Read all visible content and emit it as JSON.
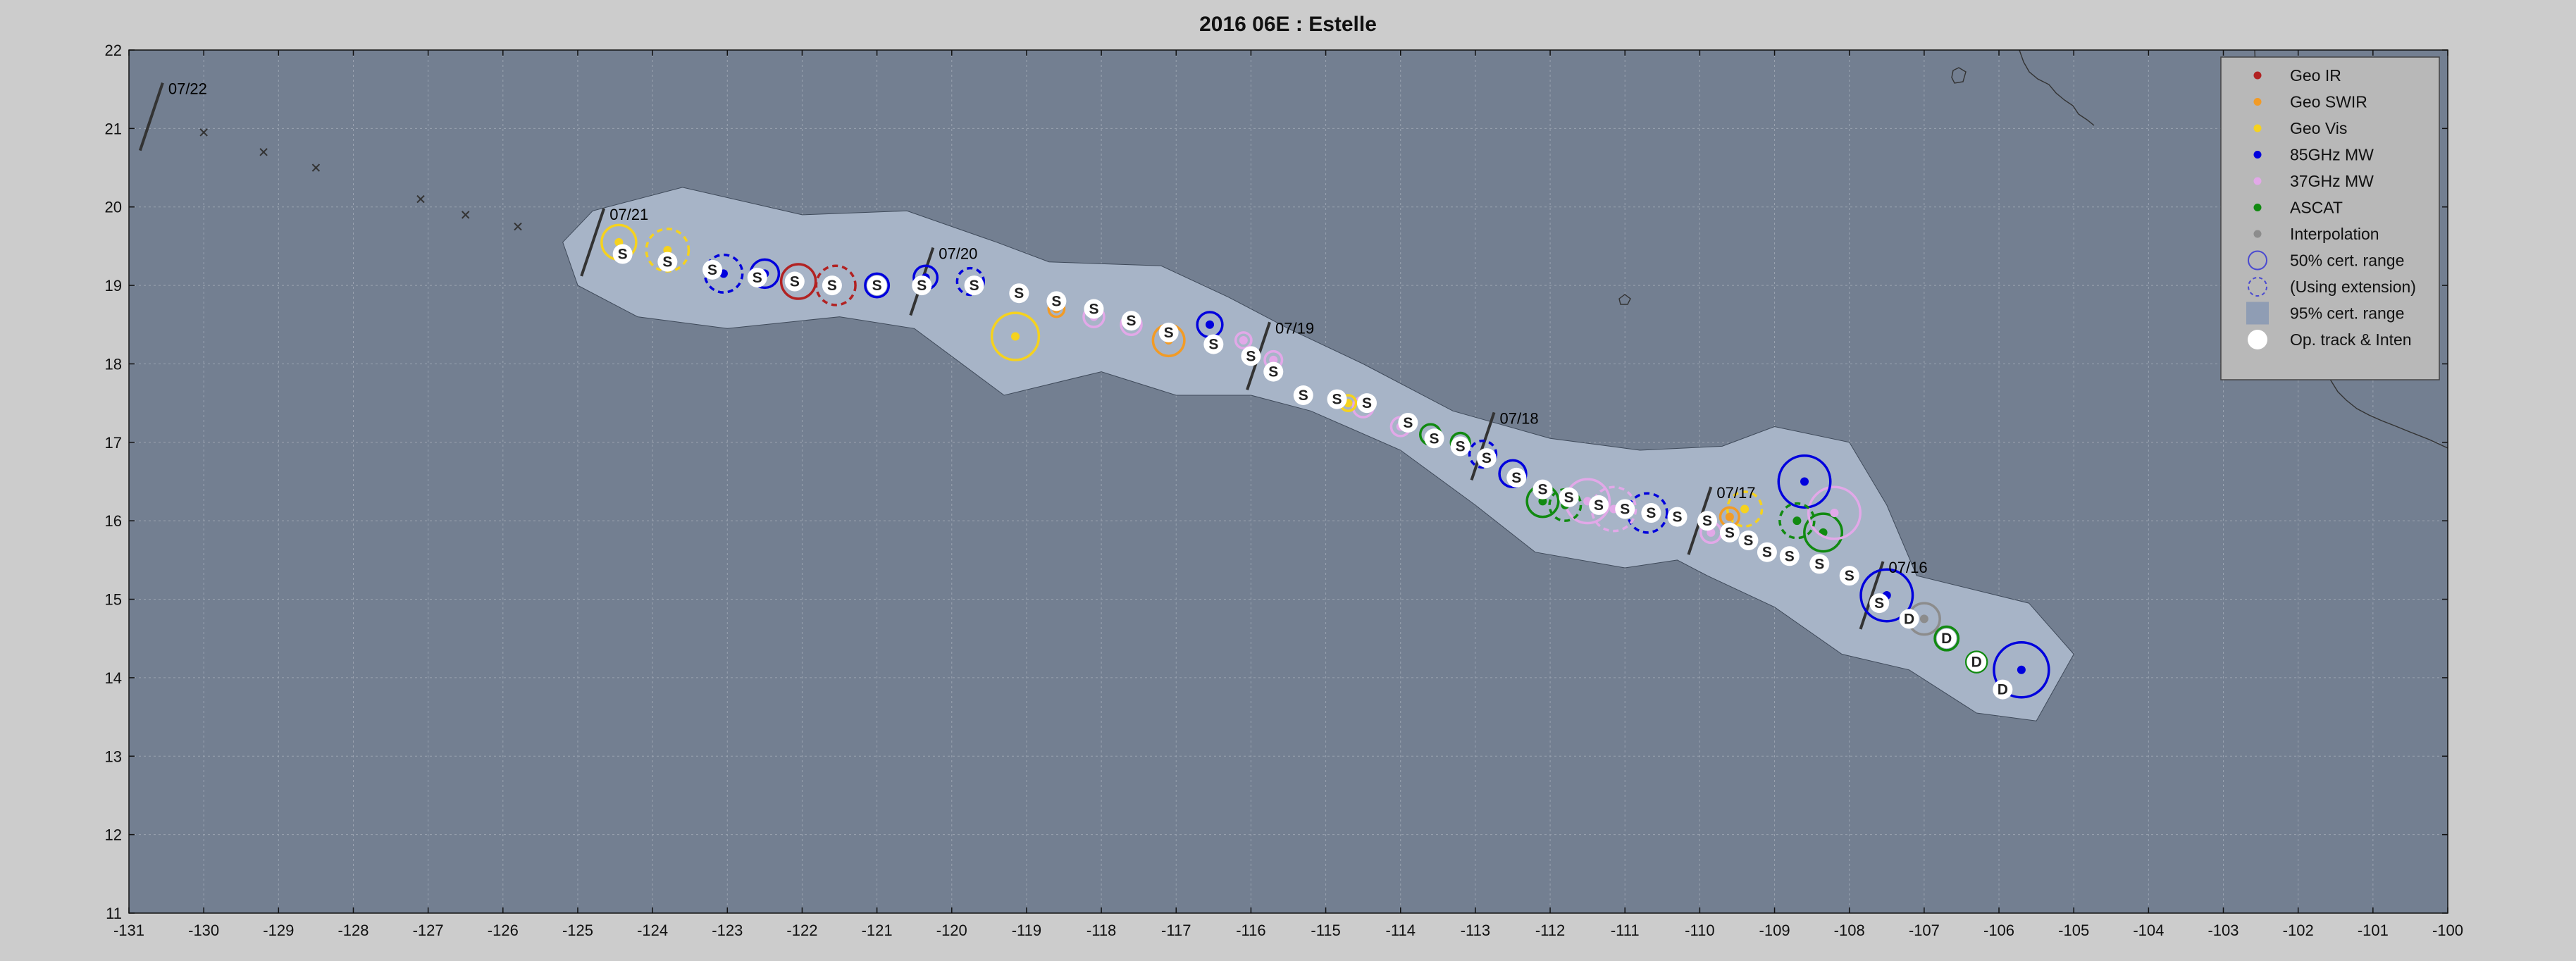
{
  "title": "2016  06E :  Estelle",
  "chart_data": {
    "type": "scatter",
    "xlim": [
      -131,
      -100
    ],
    "ylim": [
      11,
      22
    ],
    "xticks": [
      -131,
      -130,
      -129,
      -128,
      -127,
      -126,
      -125,
      -124,
      -123,
      -122,
      -121,
      -120,
      -119,
      -118,
      -117,
      -116,
      -115,
      -114,
      -113,
      -112,
      -111,
      -110,
      -109,
      -108,
      -107,
      -106,
      -105,
      -104,
      -103,
      -102,
      -101,
      -100
    ],
    "yticks": [
      11,
      12,
      13,
      14,
      15,
      16,
      17,
      18,
      19,
      20,
      21,
      22
    ],
    "grid": true,
    "legend_position": "top-right",
    "colors": {
      "background": "#cccccc",
      "ocean": "#737f91",
      "cone": "#a7b4c7",
      "geo_ir": "#b22222",
      "geo_swir": "#f29b26",
      "geo_vis": "#f5d21f",
      "mw85": "#0000dd",
      "mw37": "#e2a8e8",
      "ascat": "#118a11",
      "interp": "#8c8c8c",
      "optrack": "#ffffff"
    },
    "legend": [
      {
        "label": "Geo IR",
        "kind": "dot",
        "color": "#b22222"
      },
      {
        "label": "Geo SWIR",
        "kind": "dot",
        "color": "#f29b26"
      },
      {
        "label": "Geo Vis",
        "kind": "dot",
        "color": "#f5d21f"
      },
      {
        "label": "85GHz MW",
        "kind": "dot",
        "color": "#0000dd"
      },
      {
        "label": "37GHz MW",
        "kind": "dot",
        "color": "#e2a8e8"
      },
      {
        "label": "ASCAT",
        "kind": "dot",
        "color": "#118a11"
      },
      {
        "label": "Interpolation",
        "kind": "dot",
        "color": "#8c8c8c"
      },
      {
        "label": "50% cert. range",
        "kind": "ring"
      },
      {
        "label": "(Using extension)",
        "kind": "dashring"
      },
      {
        "label": "95% cert. range",
        "kind": "square"
      },
      {
        "label": "Op. track & Inten",
        "kind": "bigdot"
      }
    ],
    "date_marks": [
      {
        "label": "07/22",
        "lon": -130.7,
        "lat": 21.15
      },
      {
        "label": "07/21",
        "lon": -124.8,
        "lat": 19.55
      },
      {
        "label": "07/20",
        "lon": -120.4,
        "lat": 19.05
      },
      {
        "label": "07/19",
        "lon": -115.9,
        "lat": 18.1
      },
      {
        "label": "07/18",
        "lon": -112.9,
        "lat": 16.95
      },
      {
        "label": "07/17",
        "lon": -110.0,
        "lat": 16.0
      },
      {
        "label": "07/16",
        "lon": -107.7,
        "lat": 15.05
      }
    ],
    "cone_polygon": [
      [
        -125.2,
        19.55
      ],
      [
        -124.8,
        19.95
      ],
      [
        -123.6,
        20.25
      ],
      [
        -122.0,
        19.9
      ],
      [
        -120.6,
        19.95
      ],
      [
        -119.4,
        19.55
      ],
      [
        -118.7,
        19.3
      ],
      [
        -117.2,
        19.25
      ],
      [
        -116.3,
        18.85
      ],
      [
        -115.5,
        18.45
      ],
      [
        -114.5,
        18.0
      ],
      [
        -113.3,
        17.4
      ],
      [
        -112.0,
        17.05
      ],
      [
        -110.8,
        16.9
      ],
      [
        -109.7,
        16.95
      ],
      [
        -109.0,
        17.2
      ],
      [
        -108.0,
        17.0
      ],
      [
        -107.5,
        16.2
      ],
      [
        -107.1,
        15.3
      ],
      [
        -105.6,
        14.95
      ],
      [
        -105.0,
        14.3
      ],
      [
        -105.5,
        13.45
      ],
      [
        -106.3,
        13.55
      ],
      [
        -107.2,
        14.1
      ],
      [
        -108.1,
        14.3
      ],
      [
        -109.0,
        14.9
      ],
      [
        -109.9,
        15.3
      ],
      [
        -110.3,
        15.5
      ],
      [
        -111.0,
        15.4
      ],
      [
        -112.2,
        15.6
      ],
      [
        -113.0,
        16.2
      ],
      [
        -114.0,
        16.9
      ],
      [
        -115.2,
        17.4
      ],
      [
        -116.0,
        17.6
      ],
      [
        -117.0,
        17.6
      ],
      [
        -118.0,
        17.9
      ],
      [
        -119.3,
        17.6
      ],
      [
        -120.5,
        18.45
      ],
      [
        -121.5,
        18.6
      ],
      [
        -123.0,
        18.45
      ],
      [
        -124.2,
        18.6
      ],
      [
        -125.0,
        19.0
      ]
    ],
    "track_points": [
      {
        "lon": -105.95,
        "lat": 13.85,
        "t": "D"
      },
      {
        "lon": -106.3,
        "lat": 14.2,
        "t": "D"
      },
      {
        "lon": -106.7,
        "lat": 14.5,
        "t": "D"
      },
      {
        "lon": -107.2,
        "lat": 14.75,
        "t": "D"
      },
      {
        "lon": -107.6,
        "lat": 14.95,
        "t": "S"
      },
      {
        "lon": -108.0,
        "lat": 15.3,
        "t": "S"
      },
      {
        "lon": -108.4,
        "lat": 15.45,
        "t": "S"
      },
      {
        "lon": -108.8,
        "lat": 15.55,
        "t": "S"
      },
      {
        "lon": -109.1,
        "lat": 15.6,
        "t": "S"
      },
      {
        "lon": -109.35,
        "lat": 15.75,
        "t": "S"
      },
      {
        "lon": -109.6,
        "lat": 15.85,
        "t": "S"
      },
      {
        "lon": -109.9,
        "lat": 16.0,
        "t": "S"
      },
      {
        "lon": -110.3,
        "lat": 16.05,
        "t": "S"
      },
      {
        "lon": -110.65,
        "lat": 16.1,
        "t": "S"
      },
      {
        "lon": -111.0,
        "lat": 16.15,
        "t": "S"
      },
      {
        "lon": -111.35,
        "lat": 16.2,
        "t": "S"
      },
      {
        "lon": -111.75,
        "lat": 16.3,
        "t": "S"
      },
      {
        "lon": -112.1,
        "lat": 16.4,
        "t": "S"
      },
      {
        "lon": -112.45,
        "lat": 16.55,
        "t": "S"
      },
      {
        "lon": -112.85,
        "lat": 16.8,
        "t": "S"
      },
      {
        "lon": -113.2,
        "lat": 16.95,
        "t": "S"
      },
      {
        "lon": -113.55,
        "lat": 17.05,
        "t": "S"
      },
      {
        "lon": -113.9,
        "lat": 17.25,
        "t": "S"
      },
      {
        "lon": -114.45,
        "lat": 17.5,
        "t": "S"
      },
      {
        "lon": -114.85,
        "lat": 17.55,
        "t": "S"
      },
      {
        "lon": -115.3,
        "lat": 17.6,
        "t": "S"
      },
      {
        "lon": -115.7,
        "lat": 17.9,
        "t": "S"
      },
      {
        "lon": -116.0,
        "lat": 18.1,
        "t": "S"
      },
      {
        "lon": -116.5,
        "lat": 18.25,
        "t": "S"
      },
      {
        "lon": -117.1,
        "lat": 18.4,
        "t": "S"
      },
      {
        "lon": -117.6,
        "lat": 18.55,
        "t": "S"
      },
      {
        "lon": -118.1,
        "lat": 18.7,
        "t": "S"
      },
      {
        "lon": -118.6,
        "lat": 18.8,
        "t": "S"
      },
      {
        "lon": -119.1,
        "lat": 18.9,
        "t": "S"
      },
      {
        "lon": -119.7,
        "lat": 19.0,
        "t": "S"
      },
      {
        "lon": -120.4,
        "lat": 19.0,
        "t": "S"
      },
      {
        "lon": -121.0,
        "lat": 19.0,
        "t": "S"
      },
      {
        "lon": -121.6,
        "lat": 19.0,
        "t": "S"
      },
      {
        "lon": -122.1,
        "lat": 19.05,
        "t": "S"
      },
      {
        "lon": -122.6,
        "lat": 19.1,
        "t": "S"
      },
      {
        "lon": -123.2,
        "lat": 19.2,
        "t": "S"
      },
      {
        "lon": -123.8,
        "lat": 19.3,
        "t": "S"
      },
      {
        "lon": -124.4,
        "lat": 19.4,
        "t": "S"
      }
    ],
    "fixes": [
      {
        "lon": -105.7,
        "lat": 14.1,
        "src": "mw85",
        "r": 0.35,
        "dash": false
      },
      {
        "lon": -106.3,
        "lat": 14.2,
        "src": "ascat",
        "r": 0.13,
        "dash": false
      },
      {
        "lon": -106.7,
        "lat": 14.5,
        "src": "ascat",
        "r": 0.15,
        "dash": false
      },
      {
        "lon": -107.0,
        "lat": 14.75,
        "src": "interp",
        "r": 0.2,
        "dash": false
      },
      {
        "lon": -107.5,
        "lat": 15.05,
        "src": "mw85",
        "r": 0.33,
        "dash": false
      },
      {
        "lon": -108.35,
        "lat": 15.85,
        "src": "ascat",
        "r": 0.24,
        "dash": false
      },
      {
        "lon": -108.2,
        "lat": 16.1,
        "src": "mw37",
        "r": 0.33,
        "dash": false
      },
      {
        "lon": -108.6,
        "lat": 16.5,
        "src": "mw85",
        "r": 0.33,
        "dash": false
      },
      {
        "lon": -108.7,
        "lat": 16.0,
        "src": "ascat",
        "r": 0.22,
        "dash": true
      },
      {
        "lon": -109.4,
        "lat": 16.15,
        "src": "geo_vis",
        "r": 0.22,
        "dash": true
      },
      {
        "lon": -109.6,
        "lat": 16.05,
        "src": "geo_swir",
        "r": 0.12,
        "dash": false
      },
      {
        "lon": -109.85,
        "lat": 15.85,
        "src": "mw37",
        "r": 0.13,
        "dash": false
      },
      {
        "lon": -110.7,
        "lat": 16.1,
        "src": "mw85",
        "r": 0.25,
        "dash": true
      },
      {
        "lon": -111.15,
        "lat": 16.15,
        "src": "mw37",
        "r": 0.28,
        "dash": true
      },
      {
        "lon": -111.5,
        "lat": 16.25,
        "src": "mw37",
        "r": 0.28,
        "dash": false
      },
      {
        "lon": -111.8,
        "lat": 16.2,
        "src": "ascat",
        "r": 0.2,
        "dash": true
      },
      {
        "lon": -112.1,
        "lat": 16.25,
        "src": "ascat",
        "r": 0.2,
        "dash": false
      },
      {
        "lon": -112.5,
        "lat": 16.6,
        "src": "mw85",
        "r": 0.17,
        "dash": false
      },
      {
        "lon": -112.9,
        "lat": 16.85,
        "src": "mw85",
        "r": 0.17,
        "dash": true
      },
      {
        "lon": -113.2,
        "lat": 17.0,
        "src": "ascat",
        "r": 0.12,
        "dash": false
      },
      {
        "lon": -113.6,
        "lat": 17.1,
        "src": "ascat",
        "r": 0.13,
        "dash": false
      },
      {
        "lon": -114.0,
        "lat": 17.2,
        "src": "mw37",
        "r": 0.12,
        "dash": false
      },
      {
        "lon": -114.5,
        "lat": 17.45,
        "src": "mw37",
        "r": 0.13,
        "dash": false
      },
      {
        "lon": -114.7,
        "lat": 17.5,
        "src": "geo_vis",
        "r": 0.1,
        "dash": false
      },
      {
        "lon": -115.3,
        "lat": 17.6,
        "src": "geo_vis",
        "r": 0.1,
        "dash": false
      },
      {
        "lon": -115.7,
        "lat": 18.05,
        "src": "mw37",
        "r": 0.11,
        "dash": false
      },
      {
        "lon": -116.1,
        "lat": 18.3,
        "src": "mw37",
        "r": 0.1,
        "dash": false
      },
      {
        "lon": -116.55,
        "lat": 18.5,
        "src": "mw85",
        "r": 0.16,
        "dash": false
      },
      {
        "lon": -117.1,
        "lat": 18.3,
        "src": "geo_swir",
        "r": 0.2,
        "dash": false
      },
      {
        "lon": -117.6,
        "lat": 18.5,
        "src": "mw37",
        "r": 0.13,
        "dash": false
      },
      {
        "lon": -118.1,
        "lat": 18.6,
        "src": "mw37",
        "r": 0.13,
        "dash": false
      },
      {
        "lon": -118.6,
        "lat": 18.7,
        "src": "geo_swir",
        "r": 0.1,
        "dash": false
      },
      {
        "lon": -119.15,
        "lat": 18.35,
        "src": "geo_vis",
        "r": 0.3,
        "dash": false
      },
      {
        "lon": -119.75,
        "lat": 19.05,
        "src": "mw85",
        "r": 0.17,
        "dash": true
      },
      {
        "lon": -120.35,
        "lat": 19.1,
        "src": "mw85",
        "r": 0.15,
        "dash": false
      },
      {
        "lon": -121.0,
        "lat": 19.0,
        "src": "mw85",
        "r": 0.15,
        "dash": false
      },
      {
        "lon": -121.55,
        "lat": 19.0,
        "src": "geo_ir",
        "r": 0.25,
        "dash": true
      },
      {
        "lon": -122.05,
        "lat": 19.05,
        "src": "geo_ir",
        "r": 0.22,
        "dash": false
      },
      {
        "lon": -122.5,
        "lat": 19.15,
        "src": "mw85",
        "r": 0.18,
        "dash": false
      },
      {
        "lon": -123.05,
        "lat": 19.15,
        "src": "mw85",
        "r": 0.24,
        "dash": true
      },
      {
        "lon": -123.8,
        "lat": 19.45,
        "src": "geo_vis",
        "r": 0.27,
        "dash": true
      },
      {
        "lon": -124.45,
        "lat": 19.55,
        "src": "geo_vis",
        "r": 0.22,
        "dash": false
      }
    ],
    "interp_marks": [
      {
        "lon": -130.0,
        "lat": 20.95
      },
      {
        "lon": -129.2,
        "lat": 20.7
      },
      {
        "lon": -128.5,
        "lat": 20.5
      },
      {
        "lon": -127.1,
        "lat": 20.1
      },
      {
        "lon": -126.5,
        "lat": 19.9
      },
      {
        "lon": -125.8,
        "lat": 19.75
      }
    ]
  }
}
